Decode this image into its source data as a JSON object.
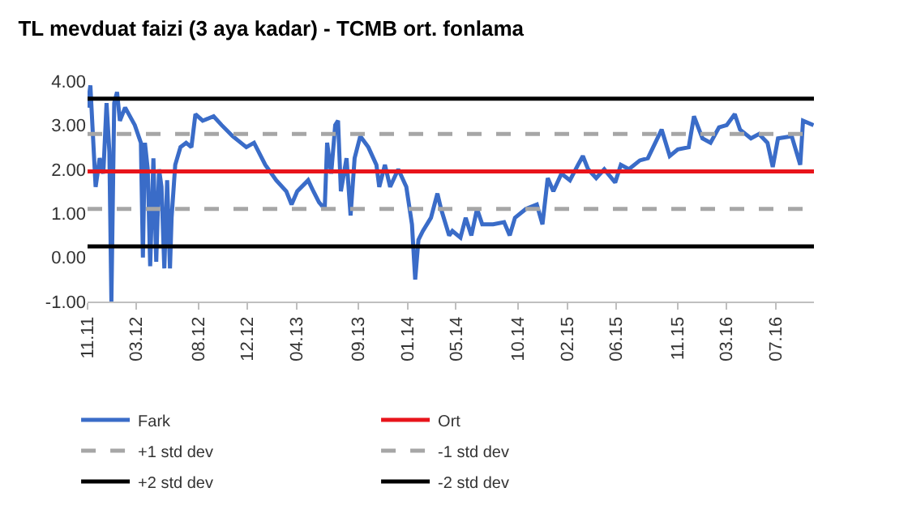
{
  "chart_data": {
    "type": "line",
    "title": "TL mevduat faizi (3 aya kadar) - TCMB ort. fonlama",
    "x": [
      "2011-11-01",
      "2011-11-08",
      "2011-11-13",
      "2011-11-21",
      "2011-12-01",
      "2011-12-10",
      "2011-12-18",
      "2011-12-25",
      "2011-12-30",
      "2012-01-06",
      "2012-01-13",
      "2012-01-20",
      "2012-02-02",
      "2012-02-26",
      "2012-03-12",
      "2012-03-17",
      "2012-03-22",
      "2012-03-29",
      "2012-04-04",
      "2012-04-12",
      "2012-04-19",
      "2012-04-26",
      "2012-05-02",
      "2012-05-09",
      "2012-05-16",
      "2012-05-23",
      "2012-05-27",
      "2012-06-05",
      "2012-06-18",
      "2012-07-02",
      "2012-07-15",
      "2012-07-25",
      "2012-08-12",
      "2012-09-08",
      "2012-09-28",
      "2012-10-25",
      "2012-11-28",
      "2012-12-17",
      "2013-01-14",
      "2013-02-10",
      "2013-03-07",
      "2013-03-20",
      "2013-04-03",
      "2013-04-30",
      "2013-05-13",
      "2013-05-27",
      "2013-06-10",
      "2013-06-16",
      "2013-06-26",
      "2013-07-06",
      "2013-07-13",
      "2013-07-20",
      "2013-08-03",
      "2013-08-13",
      "2013-08-23",
      "2013-09-06",
      "2013-09-26",
      "2013-10-16",
      "2013-10-23",
      "2013-11-06",
      "2013-11-19",
      "2013-12-09",
      "2013-12-29",
      "2014-01-12",
      "2014-01-20",
      "2014-01-28",
      "2014-02-08",
      "2014-02-28",
      "2014-03-16",
      "2014-03-25",
      "2014-04-14",
      "2014-04-22",
      "2014-05-12",
      "2014-05-25",
      "2014-06-08",
      "2014-06-22",
      "2014-07-05",
      "2014-08-01",
      "2014-08-28",
      "2014-09-11",
      "2014-09-24",
      "2014-10-21",
      "2014-11-17",
      "2014-12-01",
      "2014-12-14",
      "2014-12-28",
      "2015-01-17",
      "2015-02-07",
      "2015-02-27",
      "2015-03-11",
      "2015-03-24",
      "2015-04-13",
      "2015-05-03",
      "2015-05-30",
      "2015-06-13",
      "2015-07-03",
      "2015-07-30",
      "2015-08-19",
      "2015-09-01",
      "2015-09-22",
      "2015-10-12",
      "2015-11-01",
      "2015-11-28",
      "2015-12-11",
      "2016-01-01",
      "2016-01-21",
      "2016-02-11",
      "2016-03-01",
      "2016-03-21",
      "2016-04-03",
      "2016-04-30",
      "2016-05-20",
      "2016-06-10",
      "2016-06-23",
      "2016-07-06",
      "2016-08-09",
      "2016-08-30",
      "2016-09-06",
      "2016-10-02"
    ],
    "series": [
      {
        "name": "Fark",
        "color": "#3a6cc8",
        "values": [
          3.4,
          3.9,
          3.0,
          1.6,
          2.25,
          1.9,
          3.5,
          2.4,
          -1.0,
          3.5,
          3.75,
          3.1,
          3.4,
          3.0,
          2.6,
          0.0,
          2.6,
          2.0,
          -0.2,
          2.25,
          -0.1,
          2.0,
          1.6,
          -0.25,
          1.75,
          -0.25,
          0.9,
          2.1,
          2.5,
          2.6,
          2.5,
          3.25,
          3.1,
          3.2,
          3.0,
          2.75,
          2.5,
          2.6,
          2.1,
          1.75,
          1.5,
          1.2,
          1.5,
          1.75,
          1.5,
          1.25,
          1.1,
          2.6,
          1.9,
          3.0,
          3.1,
          1.5,
          2.25,
          0.95,
          2.25,
          2.75,
          2.5,
          2.1,
          1.6,
          2.1,
          1.6,
          2.0,
          1.6,
          0.75,
          -0.5,
          0.4,
          0.6,
          0.9,
          1.45,
          1.1,
          0.5,
          0.6,
          0.45,
          0.9,
          0.5,
          1.1,
          0.75,
          0.75,
          0.8,
          0.5,
          0.9,
          1.1,
          1.2,
          0.75,
          1.8,
          1.5,
          1.9,
          1.75,
          2.1,
          2.3,
          2.0,
          1.8,
          2.0,
          1.7,
          2.1,
          2.0,
          2.2,
          2.25,
          2.5,
          2.9,
          2.3,
          2.45,
          2.5,
          3.2,
          2.7,
          2.6,
          2.95,
          3.0,
          3.25,
          2.9,
          2.7,
          2.8,
          2.6,
          2.05,
          2.7,
          2.75,
          2.1,
          3.1,
          3.0
        ]
      }
    ],
    "ref_lines": [
      {
        "axis": "y",
        "value": 1.95,
        "label": "Ort",
        "color": "#e8141b",
        "line_style": "solid"
      },
      {
        "axis": "y",
        "value": 2.8,
        "label": "+1 std dev",
        "color": "#a6a6a6",
        "line_style": "dashed"
      },
      {
        "axis": "y",
        "value": 1.1,
        "label": "-1 std dev",
        "color": "#a6a6a6",
        "line_style": "dashed"
      },
      {
        "axis": "y",
        "value": 3.6,
        "label": "+2 std dev",
        "color": "#000000",
        "line_style": "solid"
      },
      {
        "axis": "y",
        "value": 0.25,
        "label": "-2 std dev",
        "color": "#000000",
        "line_style": "solid"
      }
    ],
    "xlim": [
      "2011-11-01",
      "2016-10-03"
    ],
    "xticks": [
      {
        "value": "2011-11-01",
        "label": "11.11"
      },
      {
        "value": "2012-03-01",
        "label": "03.12"
      },
      {
        "value": "2012-08-01",
        "label": "08.12"
      },
      {
        "value": "2012-12-01",
        "label": "12.12"
      },
      {
        "value": "2013-04-01",
        "label": "04.13"
      },
      {
        "value": "2013-09-01",
        "label": "09.13"
      },
      {
        "value": "2014-01-01",
        "label": "01.14"
      },
      {
        "value": "2014-05-01",
        "label": "05.14"
      },
      {
        "value": "2014-10-01",
        "label": "10.14"
      },
      {
        "value": "2015-02-01",
        "label": "02.15"
      },
      {
        "value": "2015-06-01",
        "label": "06.15"
      },
      {
        "value": "2015-11-01",
        "label": "11.15"
      },
      {
        "value": "2016-03-01",
        "label": "03.16"
      },
      {
        "value": "2016-07-01",
        "label": "07.16"
      }
    ],
    "ylim": [
      -1,
      4
    ],
    "yticks": [
      {
        "value": -1,
        "label": "-1.00"
      },
      {
        "value": 0,
        "label": "0.00"
      },
      {
        "value": 1,
        "label": "1.00"
      },
      {
        "value": 2,
        "label": "2.00"
      },
      {
        "value": 3,
        "label": "3.00"
      },
      {
        "value": 4,
        "label": "4.00"
      }
    ],
    "legend": "bottom",
    "marker": "none",
    "line_style": "solid"
  }
}
